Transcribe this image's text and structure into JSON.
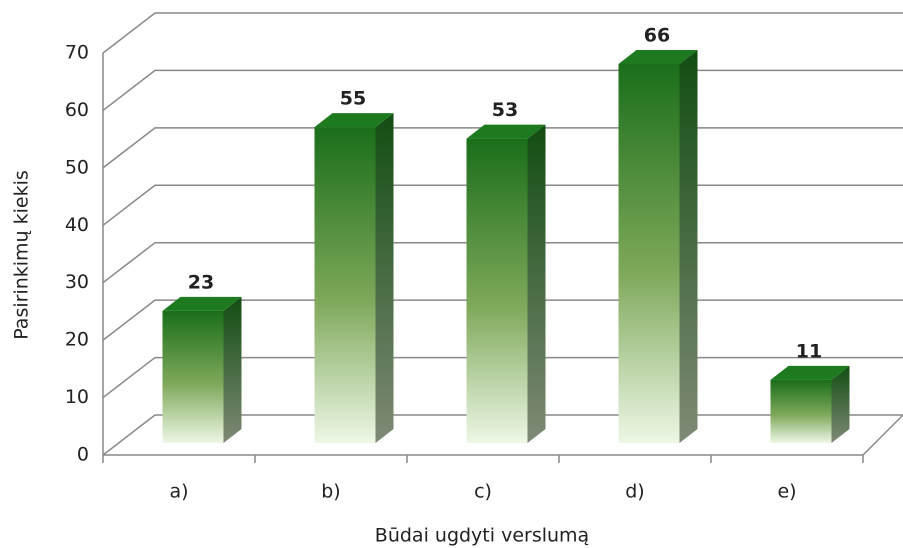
{
  "chart_data": {
    "type": "bar",
    "x_label": "Būdai ugdyti verslumą",
    "y_label": "Pasirinkimų kiekis",
    "categories": [
      "a)",
      "b)",
      "c)",
      "d)",
      "e)"
    ],
    "values": [
      23,
      55,
      53,
      66,
      11
    ],
    "ylim": [
      0,
      70
    ],
    "yticks": [
      0,
      10,
      20,
      30,
      40,
      50,
      60,
      70
    ],
    "grid": true,
    "color": "#1e7a1e"
  }
}
